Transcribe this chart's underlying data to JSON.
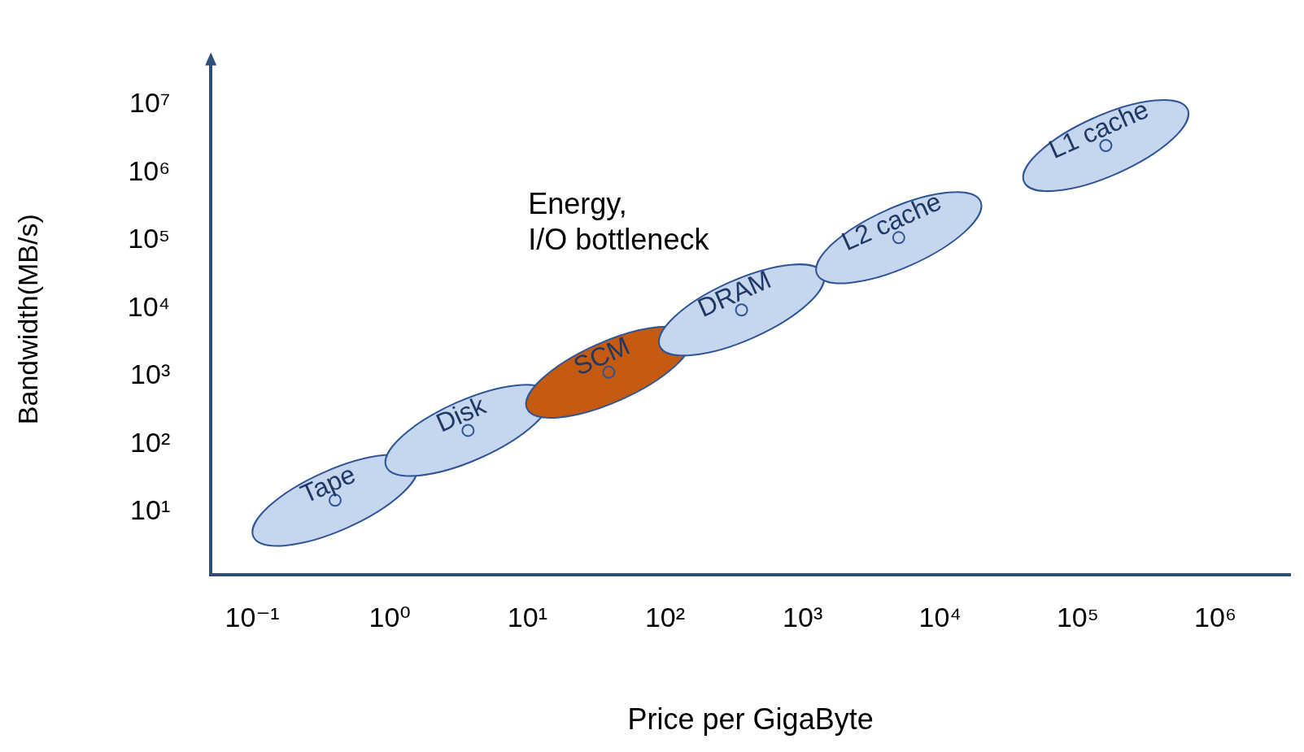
{
  "chart_data": {
    "type": "scatter",
    "xlabel": "Price per GigaByte",
    "ylabel": "Bandwidth(MB/s)",
    "log": "xy",
    "xlim": [
      0.05,
      3500000
    ],
    "ylim": [
      1.2,
      40000000
    ],
    "xticks": [
      {
        "value": 0.1,
        "label": "10⁻¹"
      },
      {
        "value": 1,
        "label": "10⁰"
      },
      {
        "value": 10,
        "label": "10¹"
      },
      {
        "value": 100,
        "label": "10²"
      },
      {
        "value": 1000,
        "label": "10³"
      },
      {
        "value": 10000,
        "label": "10⁴"
      },
      {
        "value": 100000,
        "label": "10⁵"
      },
      {
        "value": 1000000,
        "label": "10⁶"
      }
    ],
    "yticks": [
      {
        "value": 10,
        "label": "10¹"
      },
      {
        "value": 100,
        "label": "10²"
      },
      {
        "value": 1000,
        "label": "10³"
      },
      {
        "value": 10000,
        "label": "10⁴"
      },
      {
        "value": 100000,
        "label": "10⁵"
      },
      {
        "value": 1000000,
        "label": "10⁶"
      },
      {
        "value": 10000000,
        "label": "10⁷"
      }
    ],
    "series": [
      {
        "name": "Tape",
        "color": "#c5d6ee",
        "x": [
          0.4
        ],
        "values": [
          15
        ]
      },
      {
        "name": "Disk",
        "color": "#c5d6ee",
        "x": [
          3.7
        ],
        "values": [
          160
        ]
      },
      {
        "name": "SCM",
        "color": "#c55a11",
        "x": [
          39
        ],
        "values": [
          1150
        ]
      },
      {
        "name": "DRAM",
        "color": "#c5d6ee",
        "x": [
          360
        ],
        "values": [
          9500
        ]
      },
      {
        "name": "L2 cache",
        "color": "#c5d6ee",
        "x": [
          5000
        ],
        "values": [
          110000
        ]
      },
      {
        "name": "L1 cache",
        "color": "#c5d6ee",
        "x": [
          160000
        ],
        "values": [
          2500000
        ]
      }
    ],
    "annotations": [
      "Energy,\nI/O bottleneck"
    ]
  }
}
